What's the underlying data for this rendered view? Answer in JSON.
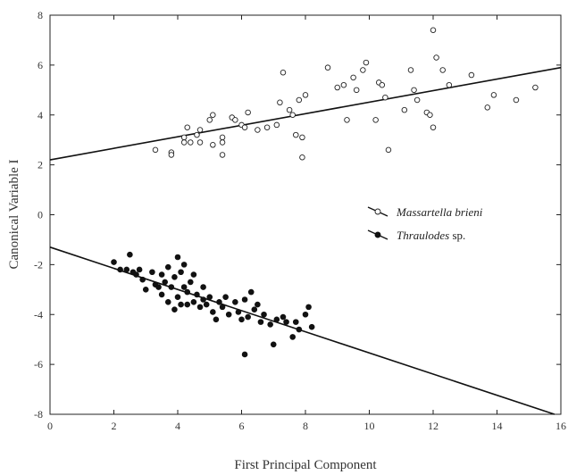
{
  "chart_data": {
    "type": "scatter",
    "title": "",
    "xlabel": "First Principal Component",
    "ylabel": "Canonical Variable I",
    "xlim": [
      0,
      16
    ],
    "ylim": [
      -8,
      8
    ],
    "xticks": [
      0,
      2,
      4,
      6,
      8,
      10,
      12,
      14,
      16
    ],
    "yticks": [
      -8,
      -6,
      -4,
      -2,
      0,
      2,
      4,
      6,
      8
    ],
    "grid": false,
    "legend_position": "center-right",
    "series": [
      {
        "name": "Massartella brieni",
        "name_italic": "Massartella brieni",
        "name_suffix": "",
        "marker": "open-circle",
        "color": "#222222",
        "fit_line": {
          "x": [
            0,
            16
          ],
          "y": [
            2.2,
            5.9
          ]
        },
        "points": [
          [
            3.3,
            2.6
          ],
          [
            3.8,
            2.5
          ],
          [
            3.8,
            2.4
          ],
          [
            4.2,
            3.1
          ],
          [
            4.3,
            3.5
          ],
          [
            4.2,
            2.9
          ],
          [
            4.4,
            2.9
          ],
          [
            4.6,
            3.2
          ],
          [
            4.7,
            3.4
          ],
          [
            4.7,
            2.9
          ],
          [
            5.0,
            3.8
          ],
          [
            5.1,
            4.0
          ],
          [
            5.1,
            2.8
          ],
          [
            5.4,
            3.1
          ],
          [
            5.4,
            2.9
          ],
          [
            5.4,
            2.4
          ],
          [
            5.7,
            3.9
          ],
          [
            5.8,
            3.8
          ],
          [
            6.0,
            3.6
          ],
          [
            6.1,
            3.5
          ],
          [
            6.2,
            4.1
          ],
          [
            6.5,
            3.4
          ],
          [
            6.8,
            3.5
          ],
          [
            7.1,
            3.6
          ],
          [
            7.2,
            4.5
          ],
          [
            7.3,
            5.7
          ],
          [
            7.5,
            4.2
          ],
          [
            7.6,
            4.0
          ],
          [
            7.7,
            3.2
          ],
          [
            7.8,
            4.6
          ],
          [
            7.9,
            2.3
          ],
          [
            7.9,
            3.1
          ],
          [
            8.0,
            4.8
          ],
          [
            8.7,
            5.9
          ],
          [
            9.0,
            5.1
          ],
          [
            9.2,
            5.2
          ],
          [
            9.3,
            3.8
          ],
          [
            9.5,
            5.5
          ],
          [
            9.6,
            5.0
          ],
          [
            9.8,
            5.8
          ],
          [
            9.9,
            6.1
          ],
          [
            10.2,
            3.8
          ],
          [
            10.3,
            5.3
          ],
          [
            10.4,
            5.2
          ],
          [
            10.5,
            4.7
          ],
          [
            10.6,
            2.6
          ],
          [
            11.1,
            4.2
          ],
          [
            11.3,
            5.8
          ],
          [
            11.4,
            5.0
          ],
          [
            11.5,
            4.6
          ],
          [
            11.8,
            4.1
          ],
          [
            11.9,
            4.0
          ],
          [
            12.0,
            7.4
          ],
          [
            12.0,
            3.5
          ],
          [
            12.1,
            6.3
          ],
          [
            12.3,
            5.8
          ],
          [
            12.5,
            5.2
          ],
          [
            13.2,
            5.6
          ],
          [
            13.7,
            4.3
          ],
          [
            13.9,
            4.8
          ],
          [
            14.6,
            4.6
          ],
          [
            15.2,
            5.1
          ]
        ]
      },
      {
        "name": "Thraulodes sp.",
        "name_italic": "Thraulodes",
        "name_suffix": " sp.",
        "marker": "filled-circle",
        "color": "#111111",
        "fit_line": {
          "x": [
            0,
            15.8
          ],
          "y": [
            -1.3,
            -8.0
          ]
        },
        "points": [
          [
            2.0,
            -1.9
          ],
          [
            2.2,
            -2.2
          ],
          [
            2.4,
            -2.2
          ],
          [
            2.5,
            -1.6
          ],
          [
            2.6,
            -2.3
          ],
          [
            2.7,
            -2.4
          ],
          [
            2.8,
            -2.2
          ],
          [
            2.9,
            -2.6
          ],
          [
            3.0,
            -3.0
          ],
          [
            3.2,
            -2.3
          ],
          [
            3.3,
            -2.8
          ],
          [
            3.4,
            -2.9
          ],
          [
            3.5,
            -2.4
          ],
          [
            3.5,
            -3.2
          ],
          [
            3.6,
            -2.7
          ],
          [
            3.7,
            -2.1
          ],
          [
            3.7,
            -3.5
          ],
          [
            3.8,
            -2.9
          ],
          [
            3.9,
            -3.8
          ],
          [
            3.9,
            -2.5
          ],
          [
            4.0,
            -1.7
          ],
          [
            4.0,
            -3.3
          ],
          [
            4.1,
            -2.3
          ],
          [
            4.1,
            -3.6
          ],
          [
            4.2,
            -2.0
          ],
          [
            4.2,
            -2.9
          ],
          [
            4.3,
            -3.1
          ],
          [
            4.3,
            -3.6
          ],
          [
            4.4,
            -2.7
          ],
          [
            4.5,
            -3.5
          ],
          [
            4.5,
            -2.4
          ],
          [
            4.6,
            -3.2
          ],
          [
            4.7,
            -3.7
          ],
          [
            4.8,
            -2.9
          ],
          [
            4.8,
            -3.4
          ],
          [
            4.9,
            -3.6
          ],
          [
            5.0,
            -3.3
          ],
          [
            5.1,
            -3.9
          ],
          [
            5.2,
            -4.2
          ],
          [
            5.3,
            -3.5
          ],
          [
            5.4,
            -3.7
          ],
          [
            5.5,
            -3.3
          ],
          [
            5.6,
            -4.0
          ],
          [
            5.8,
            -3.5
          ],
          [
            5.9,
            -3.9
          ],
          [
            6.0,
            -4.2
          ],
          [
            6.1,
            -5.6
          ],
          [
            6.1,
            -3.4
          ],
          [
            6.2,
            -4.1
          ],
          [
            6.3,
            -3.1
          ],
          [
            6.4,
            -3.8
          ],
          [
            6.5,
            -3.6
          ],
          [
            6.6,
            -4.3
          ],
          [
            6.7,
            -4.0
          ],
          [
            6.9,
            -4.4
          ],
          [
            7.0,
            -5.2
          ],
          [
            7.1,
            -4.2
          ],
          [
            7.3,
            -4.1
          ],
          [
            7.4,
            -4.3
          ],
          [
            7.6,
            -4.9
          ],
          [
            7.7,
            -4.3
          ],
          [
            7.8,
            -4.6
          ],
          [
            8.0,
            -4.0
          ],
          [
            8.1,
            -3.7
          ],
          [
            8.2,
            -4.5
          ]
        ]
      }
    ]
  }
}
